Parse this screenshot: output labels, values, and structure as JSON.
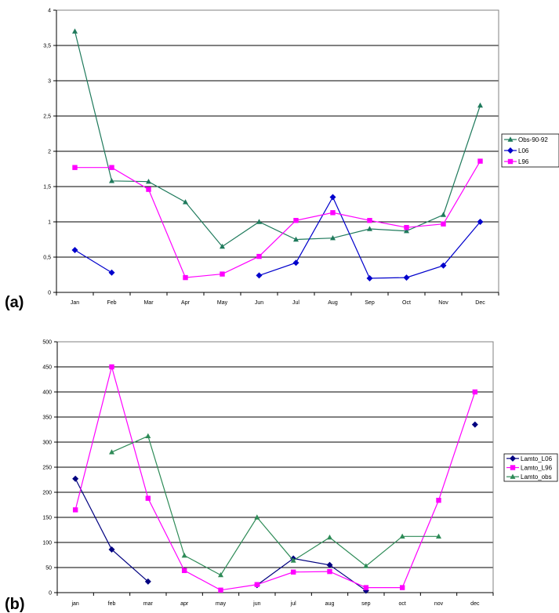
{
  "chart_data": [
    {
      "type": "line",
      "panel_label": "(a)",
      "categories": [
        "Jan",
        "Feb",
        "Mar",
        "Apr",
        "May",
        "Jun",
        "Jul",
        "Aug",
        "Sep",
        "Oct",
        "Nov",
        "Dec"
      ],
      "ylim": [
        0,
        4
      ],
      "yticks": [
        0,
        0.5,
        1,
        1.5,
        2,
        2.5,
        3,
        3.5,
        4
      ],
      "ytick_labels": [
        "0",
        "0,5",
        "1",
        "1,5",
        "2",
        "2,5",
        "3",
        "3,5",
        "4"
      ],
      "grid": true,
      "legend_position": "right",
      "series": [
        {
          "name": "Obs-90-92",
          "color": "#1f7a5c",
          "marker": "triangle",
          "values": [
            3.7,
            1.58,
            1.57,
            1.28,
            0.65,
            1.0,
            0.75,
            0.77,
            0.9,
            0.87,
            1.1,
            2.65
          ]
        },
        {
          "name": "L06",
          "color": "#0000cc",
          "marker": "diamond",
          "values": [
            0.6,
            0.28,
            null,
            null,
            null,
            0.24,
            0.42,
            1.35,
            0.2,
            0.21,
            0.38,
            1.0
          ]
        },
        {
          "name": "L96",
          "color": "#ff00ff",
          "marker": "square",
          "values": [
            1.77,
            1.77,
            1.46,
            0.21,
            0.26,
            0.51,
            1.02,
            1.13,
            1.02,
            0.92,
            0.97,
            1.86
          ]
        }
      ]
    },
    {
      "type": "line",
      "panel_label": "(b)",
      "categories": [
        "jan",
        "feb",
        "mar",
        "apr",
        "may",
        "jun",
        "jul",
        "aug",
        "sep",
        "oct",
        "nov",
        "dec"
      ],
      "ylim": [
        0,
        500
      ],
      "yticks": [
        0,
        50,
        100,
        150,
        200,
        250,
        300,
        350,
        400,
        450,
        500
      ],
      "ytick_labels": [
        "0",
        "50",
        "100",
        "150",
        "200",
        "250",
        "300",
        "350",
        "400",
        "450",
        "500"
      ],
      "grid": true,
      "legend_position": "right",
      "series": [
        {
          "name": "Lamto_L06",
          "color": "#000080",
          "marker": "diamond",
          "values": [
            227,
            86,
            22,
            null,
            null,
            15,
            68,
            55,
            4,
            null,
            null,
            335
          ]
        },
        {
          "name": "Lamto_L96",
          "color": "#ff00ff",
          "marker": "square",
          "values": [
            165,
            450,
            188,
            44,
            5,
            16,
            41,
            42,
            10,
            10,
            184,
            400
          ]
        },
        {
          "name": "Lamto_obs",
          "color": "#2e8b57",
          "marker": "triangle",
          "values": [
            null,
            280,
            312,
            74,
            35,
            150,
            64,
            110,
            53,
            112,
            112,
            null
          ]
        }
      ]
    }
  ]
}
